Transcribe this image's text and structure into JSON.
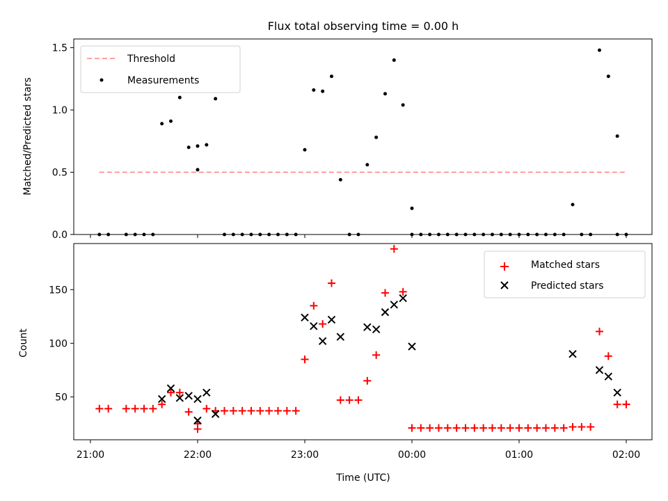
{
  "chart_data": [
    {
      "type": "scatter",
      "title": "Flux total observing time = 0.00 h",
      "xlabel": "",
      "ylabel": "Matched/Predicted stars",
      "xlim": [
        "20:55",
        "02:15"
      ],
      "ylim": [
        0,
        1.57
      ],
      "yticks": [
        0,
        0.5,
        1.0,
        1.5
      ],
      "ytick_labels": [
        "0.0",
        "0.5",
        "1.0",
        "1.5"
      ],
      "xticks": [
        "21:00",
        "22:00",
        "23:00",
        "00:00",
        "01:00",
        "02:00"
      ],
      "xtick_labels": [
        "",
        "",
        "",
        "",
        "",
        ""
      ],
      "legend": {
        "position": "upper left",
        "entries": [
          "Threshold",
          "Measurements"
        ]
      },
      "threshold": {
        "name": "Threshold",
        "value": 0.5,
        "x_start": "21:05",
        "x_end": "02:00",
        "color": "#ff7f7f",
        "style": "dashed"
      },
      "series": [
        {
          "name": "Measurements",
          "color": "#000000",
          "marker": "dot",
          "points": [
            [
              "21:05",
              0
            ],
            [
              "21:10",
              0
            ],
            [
              "21:20",
              0
            ],
            [
              "21:25",
              0
            ],
            [
              "21:30",
              0
            ],
            [
              "21:35",
              0
            ],
            [
              "21:40",
              0.89
            ],
            [
              "21:45",
              0.91
            ],
            [
              "21:50",
              1.1
            ],
            [
              "21:55",
              0.7
            ],
            [
              "22:00",
              0.52
            ],
            [
              "22:00",
              0.71
            ],
            [
              "22:05",
              0.72
            ],
            [
              "22:10",
              1.09
            ],
            [
              "22:15",
              0
            ],
            [
              "22:20",
              0
            ],
            [
              "22:25",
              0
            ],
            [
              "22:30",
              0
            ],
            [
              "22:35",
              0
            ],
            [
              "22:40",
              0
            ],
            [
              "22:45",
              0
            ],
            [
              "22:50",
              0
            ],
            [
              "22:55",
              0
            ],
            [
              "23:00",
              0.68
            ],
            [
              "23:05",
              1.16
            ],
            [
              "23:10",
              1.15
            ],
            [
              "23:15",
              1.27
            ],
            [
              "23:20",
              0.44
            ],
            [
              "23:25",
              0
            ],
            [
              "23:30",
              0
            ],
            [
              "23:35",
              0.56
            ],
            [
              "23:40",
              0.78
            ],
            [
              "23:45",
              1.13
            ],
            [
              "23:50",
              1.4
            ],
            [
              "23:55",
              1.04
            ],
            [
              "00:00",
              0.21
            ],
            [
              "00:00",
              0
            ],
            [
              "00:05",
              0
            ],
            [
              "00:10",
              0
            ],
            [
              "00:15",
              0
            ],
            [
              "00:20",
              0
            ],
            [
              "00:25",
              0
            ],
            [
              "00:30",
              0
            ],
            [
              "00:35",
              0
            ],
            [
              "00:40",
              0
            ],
            [
              "00:45",
              0
            ],
            [
              "00:50",
              0
            ],
            [
              "00:55",
              0
            ],
            [
              "01:00",
              0
            ],
            [
              "01:05",
              0
            ],
            [
              "01:10",
              0
            ],
            [
              "01:15",
              0
            ],
            [
              "01:20",
              0
            ],
            [
              "01:25",
              0
            ],
            [
              "01:30",
              0.24
            ],
            [
              "01:35",
              0
            ],
            [
              "01:40",
              0
            ],
            [
              "01:45",
              1.48
            ],
            [
              "01:50",
              1.27
            ],
            [
              "01:55",
              0.79
            ],
            [
              "01:55",
              0
            ],
            [
              "02:00",
              0
            ]
          ]
        }
      ]
    },
    {
      "type": "scatter",
      "title": "",
      "xlabel": "Time (UTC)",
      "ylabel": "Count",
      "xlim": [
        "20:55",
        "02:15"
      ],
      "ylim": [
        10,
        193
      ],
      "yticks": [
        50,
        100,
        150
      ],
      "ytick_labels": [
        "50",
        "100",
        "150"
      ],
      "xticks": [
        "21:00",
        "22:00",
        "23:00",
        "00:00",
        "01:00",
        "02:00"
      ],
      "xtick_labels": [
        "21:00",
        "22:00",
        "23:00",
        "00:00",
        "01:00",
        "02:00"
      ],
      "legend": {
        "position": "upper right",
        "entries": [
          "Matched stars",
          "Predicted stars"
        ]
      },
      "series": [
        {
          "name": "Matched stars",
          "color": "#ff0000",
          "marker": "plus",
          "points": [
            [
              "21:05",
              39
            ],
            [
              "21:10",
              39
            ],
            [
              "21:20",
              39
            ],
            [
              "21:25",
              39
            ],
            [
              "21:30",
              39
            ],
            [
              "21:35",
              39
            ],
            [
              "21:40",
              43
            ],
            [
              "21:45",
              54
            ],
            [
              "21:50",
              54
            ],
            [
              "21:55",
              36
            ],
            [
              "22:00",
              25
            ],
            [
              "22:00",
              20
            ],
            [
              "22:05",
              39
            ],
            [
              "22:10",
              37
            ],
            [
              "22:15",
              37
            ],
            [
              "22:20",
              37
            ],
            [
              "22:25",
              37
            ],
            [
              "22:30",
              37
            ],
            [
              "22:35",
              37
            ],
            [
              "22:40",
              37
            ],
            [
              "22:45",
              37
            ],
            [
              "22:50",
              37
            ],
            [
              "22:55",
              37
            ],
            [
              "23:00",
              85
            ],
            [
              "23:05",
              135
            ],
            [
              "23:10",
              118
            ],
            [
              "23:15",
              156
            ],
            [
              "23:20",
              47
            ],
            [
              "23:25",
              47
            ],
            [
              "23:30",
              47
            ],
            [
              "23:35",
              65
            ],
            [
              "23:40",
              89
            ],
            [
              "23:45",
              147
            ],
            [
              "23:50",
              188
            ],
            [
              "23:55",
              148
            ],
            [
              "00:00",
              21
            ],
            [
              "00:05",
              21
            ],
            [
              "00:10",
              21
            ],
            [
              "00:15",
              21
            ],
            [
              "00:20",
              21
            ],
            [
              "00:25",
              21
            ],
            [
              "00:30",
              21
            ],
            [
              "00:35",
              21
            ],
            [
              "00:40",
              21
            ],
            [
              "00:45",
              21
            ],
            [
              "00:50",
              21
            ],
            [
              "00:55",
              21
            ],
            [
              "01:00",
              21
            ],
            [
              "01:05",
              21
            ],
            [
              "01:10",
              21
            ],
            [
              "01:15",
              21
            ],
            [
              "01:20",
              21
            ],
            [
              "01:25",
              21
            ],
            [
              "01:30",
              22
            ],
            [
              "01:35",
              22
            ],
            [
              "01:40",
              22
            ],
            [
              "01:45",
              111
            ],
            [
              "01:50",
              88
            ],
            [
              "01:55",
              43
            ],
            [
              "02:00",
              43
            ],
            [
              "02:00",
              43
            ]
          ]
        },
        {
          "name": "Predicted stars",
          "color": "#000000",
          "marker": "x",
          "points": [
            [
              "21:40",
              48
            ],
            [
              "21:45",
              58
            ],
            [
              "21:50",
              49
            ],
            [
              "21:55",
              51
            ],
            [
              "22:00",
              48
            ],
            [
              "22:00",
              28
            ],
            [
              "22:05",
              54
            ],
            [
              "22:10",
              34
            ],
            [
              "23:00",
              124
            ],
            [
              "23:05",
              116
            ],
            [
              "23:10",
              102
            ],
            [
              "23:15",
              122
            ],
            [
              "23:20",
              106
            ],
            [
              "23:35",
              115
            ],
            [
              "23:40",
              113
            ],
            [
              "23:45",
              129
            ],
            [
              "23:50",
              136
            ],
            [
              "23:55",
              142
            ],
            [
              "00:00",
              97
            ],
            [
              "01:30",
              90
            ],
            [
              "01:45",
              75
            ],
            [
              "01:50",
              69
            ],
            [
              "01:55",
              54
            ]
          ]
        }
      ]
    }
  ]
}
